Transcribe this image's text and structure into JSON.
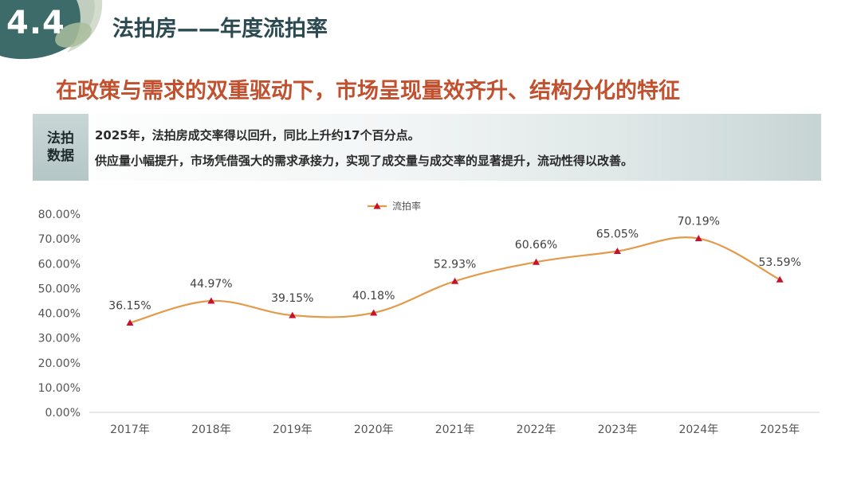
{
  "header": {
    "section_number": "4.4",
    "title": "法拍房——年度流拍率"
  },
  "subtitle": "在政策与需求的双重驱动下，市场呈现量效齐升、结构分化的特征",
  "info_box": {
    "tag_line1": "法拍",
    "tag_line2": "数据",
    "line1": "2025年，法拍房成交率得以回升，同比上升约17个百分点。",
    "line2": "供应量小幅提升，市场凭借强大的需求承接力，实现了成交量与成交率的显著提升，流动性得以改善。"
  },
  "colors": {
    "line": "#e39a4a",
    "marker": "#c8102e",
    "axis_text": "#555555",
    "label_text": "#404040"
  },
  "chart_data": {
    "type": "line",
    "title": "",
    "xlabel": "",
    "ylabel": "",
    "categories": [
      "2017年",
      "2018年",
      "2019年",
      "2020年",
      "2021年",
      "2022年",
      "2023年",
      "2024年",
      "2025年"
    ],
    "series": [
      {
        "name": "流拍率",
        "values": [
          36.15,
          44.97,
          39.15,
          40.18,
          52.93,
          60.66,
          65.05,
          70.19,
          53.59
        ],
        "labels": [
          "36.15%",
          "44.97%",
          "39.15%",
          "40.18%",
          "52.93%",
          "60.66%",
          "65.05%",
          "70.19%",
          "53.59%"
        ]
      }
    ],
    "ylim": [
      0,
      80
    ],
    "yticks": [
      0,
      10,
      20,
      30,
      40,
      50,
      60,
      70,
      80
    ],
    "ytick_labels": [
      "0.00%",
      "10.00%",
      "20.00%",
      "30.00%",
      "40.00%",
      "50.00%",
      "60.00%",
      "70.00%",
      "80.00%"
    ],
    "legend": "top-center",
    "grid": false
  }
}
